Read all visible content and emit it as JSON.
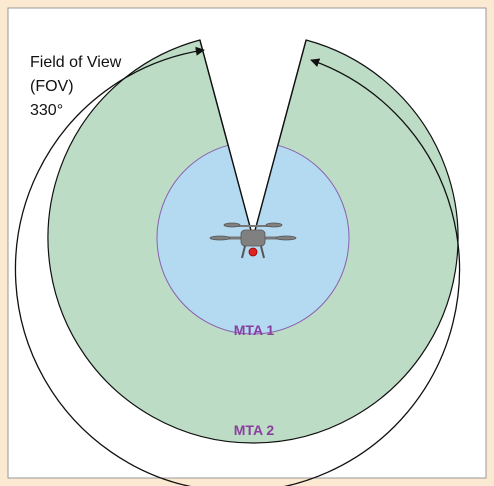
{
  "fov_label": {
    "lines": [
      "Field of View",
      "(FOV)",
      "330°"
    ]
  },
  "zones": {
    "inner": {
      "label": "MTA 1"
    },
    "outer": {
      "label": "MTA 2"
    }
  }
}
